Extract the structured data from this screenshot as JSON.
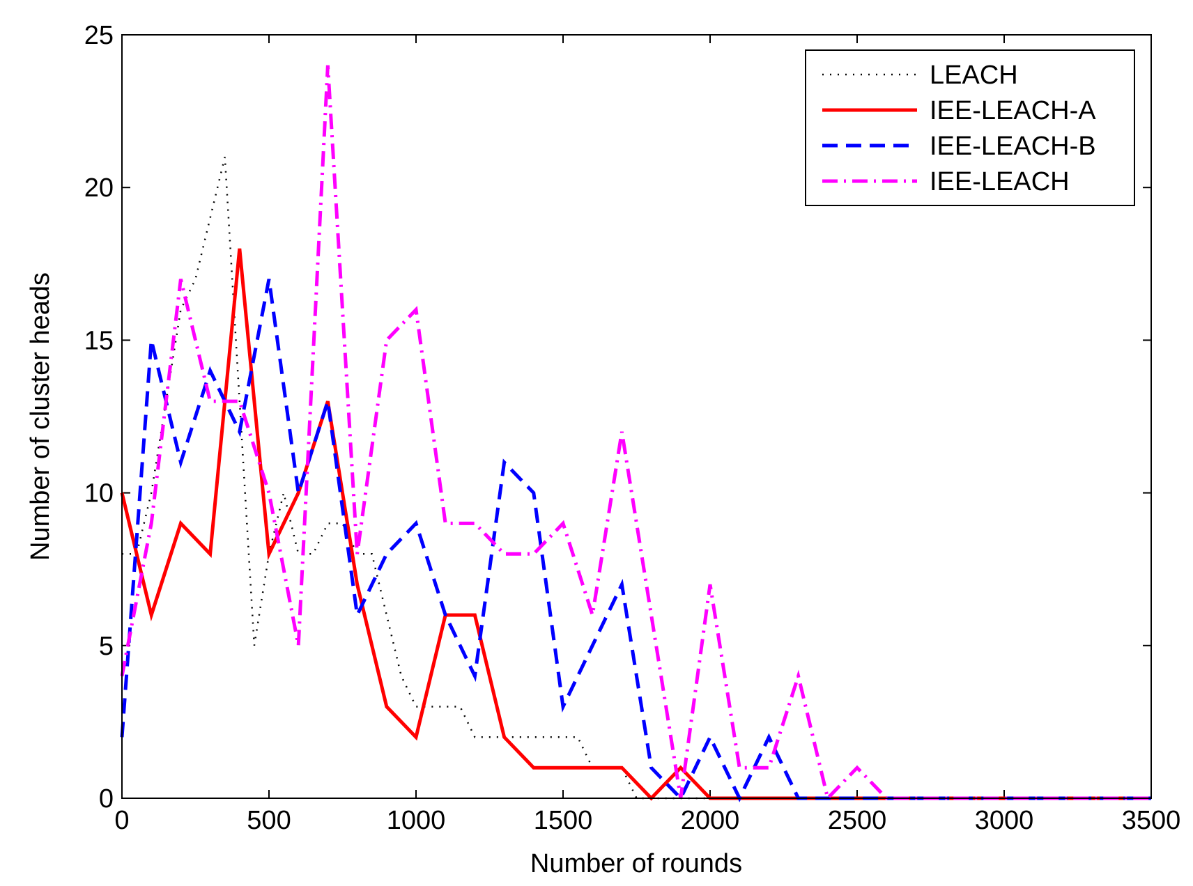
{
  "chart_data": {
    "type": "line",
    "title": "",
    "xlabel": "Number of rounds",
    "ylabel": "Number of cluster heads",
    "xlim": [
      0,
      3500
    ],
    "ylim": [
      0,
      25
    ],
    "xticks": [
      "0",
      "500",
      "1000",
      "1500",
      "2000",
      "2500",
      "3000",
      "3500"
    ],
    "yticks": [
      "0",
      "5",
      "10",
      "15",
      "20",
      "25"
    ],
    "legend_position": "top-right",
    "series": [
      {
        "name": "LEACH",
        "color": "#000000",
        "style": "dotted",
        "x": [
          0,
          50,
          100,
          150,
          200,
          250,
          300,
          350,
          400,
          450,
          500,
          550,
          600,
          650,
          700,
          750,
          800,
          850,
          900,
          950,
          1000,
          1050,
          1100,
          1150,
          1200,
          1250,
          1300,
          1350,
          1400,
          1450,
          1500,
          1550,
          1600,
          1650,
          1700,
          1750,
          1800,
          1850,
          1900,
          1950,
          2000,
          2500,
          3000,
          3500
        ],
        "y": [
          8,
          8,
          10,
          13,
          16,
          17,
          19,
          21,
          13,
          5,
          8,
          10,
          8,
          8,
          9,
          9,
          8,
          8,
          6,
          4,
          3,
          3,
          3,
          3,
          2,
          2,
          2,
          2,
          2,
          2,
          2,
          2,
          1,
          1,
          1,
          0,
          0,
          0,
          0,
          0,
          0,
          0,
          0,
          0
        ]
      },
      {
        "name": "IEE-LEACH-A",
        "color": "#ff0000",
        "style": "solid",
        "x": [
          0,
          100,
          200,
          300,
          400,
          500,
          600,
          700,
          800,
          900,
          1000,
          1100,
          1200,
          1300,
          1400,
          1500,
          1600,
          1700,
          1800,
          1900,
          2000,
          2500,
          3000,
          3500
        ],
        "y": [
          10,
          6,
          9,
          8,
          18,
          8,
          10,
          13,
          7,
          3,
          2,
          6,
          6,
          2,
          1,
          1,
          1,
          1,
          0,
          1,
          0,
          0,
          0,
          0
        ]
      },
      {
        "name": "IEE-LEACH-B",
        "color": "#0000ff",
        "style": "dashed",
        "x": [
          0,
          100,
          200,
          300,
          400,
          500,
          600,
          700,
          800,
          900,
          1000,
          1100,
          1200,
          1300,
          1400,
          1500,
          1600,
          1700,
          1800,
          1900,
          2000,
          2100,
          2200,
          2300,
          2500,
          3000,
          3500
        ],
        "y": [
          2,
          15,
          11,
          14,
          12,
          17,
          10,
          13,
          6,
          8,
          9,
          6,
          4,
          11,
          10,
          3,
          5,
          7,
          1,
          0,
          2,
          0,
          2,
          0,
          0,
          0,
          0
        ]
      },
      {
        "name": "IEE-LEACH",
        "color": "#ff00ff",
        "style": "dashdot",
        "x": [
          0,
          100,
          200,
          300,
          400,
          500,
          600,
          700,
          800,
          900,
          1000,
          1100,
          1200,
          1300,
          1400,
          1500,
          1600,
          1700,
          1800,
          1900,
          2000,
          2100,
          2200,
          2300,
          2400,
          2500,
          2600,
          3000,
          3500
        ],
        "y": [
          4,
          9,
          17,
          13,
          13,
          10,
          5,
          24,
          8,
          15,
          16,
          9,
          9,
          8,
          8,
          9,
          6,
          12,
          6,
          0,
          7,
          1,
          1,
          4,
          0,
          1,
          0,
          0,
          0
        ]
      }
    ]
  }
}
